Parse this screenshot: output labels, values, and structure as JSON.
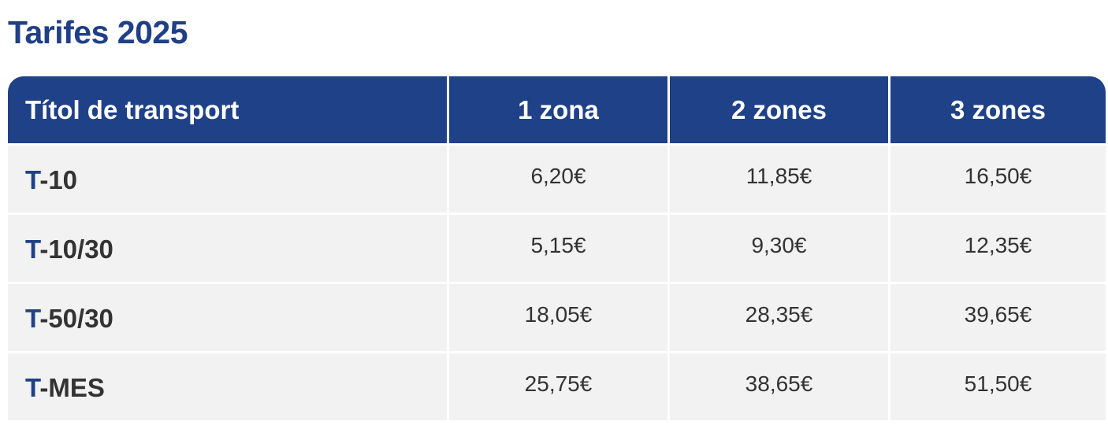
{
  "header": {
    "title": "Tarifes 2025"
  },
  "table": {
    "columns": [
      "Títol de transport",
      "1 zona",
      "2 zones",
      "3 zones"
    ],
    "rows": [
      [
        "T-10",
        "6,20€",
        "11,85€",
        "16,50€"
      ],
      [
        "T-10/30",
        "5,15€",
        "9,30€",
        "12,35€"
      ],
      [
        "T-50/30",
        "18,05€",
        "28,35€",
        "39,65€"
      ],
      [
        "T-MES",
        "25,75€",
        "38,65€",
        "51,50€"
      ]
    ]
  }
}
